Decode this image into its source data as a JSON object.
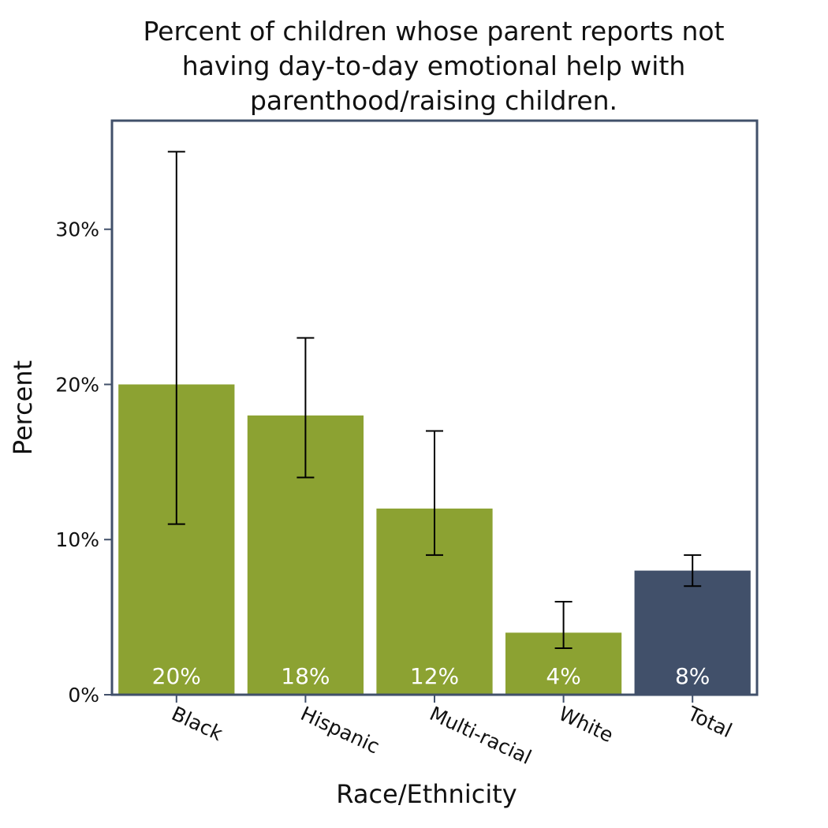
{
  "title_lines": [
    "Percent of children whose parent reports not",
    "having day-to-day emotional help with",
    "parenthood/raising children."
  ],
  "colors": {
    "group_bar": "#8ca232",
    "total_bar": "#41506a",
    "frame": "#41506a",
    "text": "#111111",
    "bar_label": "#ffffff"
  },
  "chart_data": {
    "type": "bar",
    "title": "Percent of children whose parent reports not having day-to-day emotional help with parenthood/raising children.",
    "xlabel": "Race/Ethnicity",
    "ylabel": "Percent",
    "ylim": [
      0,
      37
    ],
    "yticks": [
      0,
      10,
      20,
      30
    ],
    "ytick_labels": [
      "0%",
      "10%",
      "20%",
      "30%"
    ],
    "categories": [
      "Black",
      "Hispanic",
      "Multi-racial",
      "White",
      "Total"
    ],
    "values": [
      20,
      18,
      12,
      4,
      8
    ],
    "value_labels": [
      "20%",
      "18%",
      "12%",
      "4%",
      "8%"
    ],
    "error_low": [
      11,
      14,
      9,
      3,
      7
    ],
    "error_high": [
      35,
      23,
      17,
      6,
      9
    ],
    "grid": false,
    "legend": "none"
  }
}
